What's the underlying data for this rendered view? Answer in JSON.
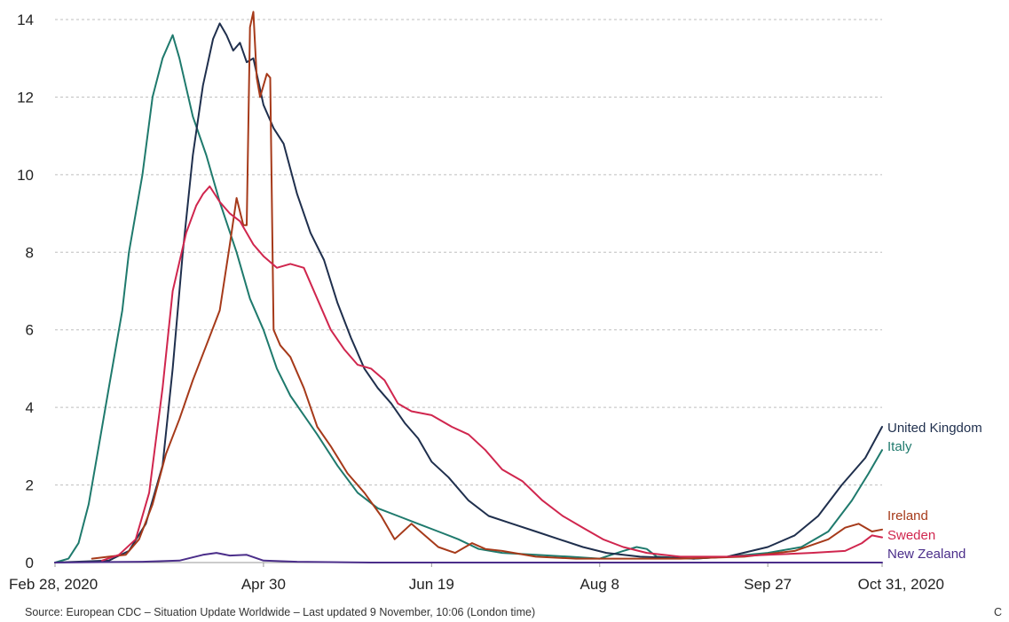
{
  "chart_data": {
    "type": "line",
    "title": "",
    "xlabel": "",
    "ylabel": "",
    "x_range": [
      "2020-02-28",
      "2020-10-31"
    ],
    "ylim": [
      0,
      14
    ],
    "y_ticks": [
      0,
      2,
      4,
      6,
      8,
      10,
      12,
      14
    ],
    "x_ticks": [
      {
        "date": "2020-02-28",
        "label": "Feb 28, 2020"
      },
      {
        "date": "2020-04-30",
        "label": "Apr 30"
      },
      {
        "date": "2020-06-19",
        "label": "Jun 19"
      },
      {
        "date": "2020-08-08",
        "label": "Aug 8"
      },
      {
        "date": "2020-09-27",
        "label": "Sep 27"
      },
      {
        "date": "2020-10-31",
        "label": "Oct 31, 2020"
      }
    ],
    "grid": "horizontal dashed",
    "legend": "line-end labels",
    "series": [
      {
        "name": "Italy",
        "color": "#1f7a6d",
        "points": [
          [
            "2020-02-28",
            0
          ],
          [
            "2020-03-03",
            0.1
          ],
          [
            "2020-03-06",
            0.5
          ],
          [
            "2020-03-09",
            1.5
          ],
          [
            "2020-03-12",
            3
          ],
          [
            "2020-03-15",
            4.5
          ],
          [
            "2020-03-19",
            6.5
          ],
          [
            "2020-03-21",
            8
          ],
          [
            "2020-03-25",
            10
          ],
          [
            "2020-03-28",
            12
          ],
          [
            "2020-03-31",
            13
          ],
          [
            "2020-04-03",
            13.6
          ],
          [
            "2020-04-05",
            13
          ],
          [
            "2020-04-09",
            11.5
          ],
          [
            "2020-04-13",
            10.5
          ],
          [
            "2020-04-17",
            9.3
          ],
          [
            "2020-04-22",
            8
          ],
          [
            "2020-04-26",
            6.8
          ],
          [
            "2020-04-30",
            6
          ],
          [
            "2020-05-04",
            5
          ],
          [
            "2020-05-08",
            4.3
          ],
          [
            "2020-05-12",
            3.8
          ],
          [
            "2020-05-16",
            3.3
          ],
          [
            "2020-05-22",
            2.5
          ],
          [
            "2020-05-28",
            1.8
          ],
          [
            "2020-06-03",
            1.4
          ],
          [
            "2020-06-09",
            1.2
          ],
          [
            "2020-06-15",
            1.0
          ],
          [
            "2020-06-21",
            0.8
          ],
          [
            "2020-06-27",
            0.6
          ],
          [
            "2020-07-03",
            0.35
          ],
          [
            "2020-07-10",
            0.25
          ],
          [
            "2020-07-20",
            0.2
          ],
          [
            "2020-07-30",
            0.15
          ],
          [
            "2020-08-08",
            0.1
          ],
          [
            "2020-08-15",
            0.3
          ],
          [
            "2020-08-19",
            0.4
          ],
          [
            "2020-08-22",
            0.35
          ],
          [
            "2020-08-25",
            0.15
          ],
          [
            "2020-09-05",
            0.1
          ],
          [
            "2020-09-15",
            0.15
          ],
          [
            "2020-09-27",
            0.25
          ],
          [
            "2020-10-07",
            0.4
          ],
          [
            "2020-10-15",
            0.8
          ],
          [
            "2020-10-22",
            1.6
          ],
          [
            "2020-10-27",
            2.3
          ],
          [
            "2020-10-31",
            2.9
          ]
        ]
      },
      {
        "name": "United Kingdom",
        "color": "#1f2f4d",
        "points": [
          [
            "2020-02-28",
            0
          ],
          [
            "2020-03-15",
            0.05
          ],
          [
            "2020-03-21",
            0.3
          ],
          [
            "2020-03-26",
            1.0
          ],
          [
            "2020-03-31",
            2.5
          ],
          [
            "2020-04-03",
            5
          ],
          [
            "2020-04-06",
            8
          ],
          [
            "2020-04-09",
            10.5
          ],
          [
            "2020-04-12",
            12.3
          ],
          [
            "2020-04-15",
            13.5
          ],
          [
            "2020-04-17",
            13.9
          ],
          [
            "2020-04-19",
            13.6
          ],
          [
            "2020-04-21",
            13.2
          ],
          [
            "2020-04-23",
            13.4
          ],
          [
            "2020-04-25",
            12.9
          ],
          [
            "2020-04-27",
            13
          ],
          [
            "2020-04-30",
            11.8
          ],
          [
            "2020-05-03",
            11.2
          ],
          [
            "2020-05-06",
            10.8
          ],
          [
            "2020-05-10",
            9.5
          ],
          [
            "2020-05-14",
            8.5
          ],
          [
            "2020-05-18",
            7.8
          ],
          [
            "2020-05-22",
            6.7
          ],
          [
            "2020-05-26",
            5.8
          ],
          [
            "2020-05-30",
            5.0
          ],
          [
            "2020-06-03",
            4.5
          ],
          [
            "2020-06-07",
            4.1
          ],
          [
            "2020-06-11",
            3.6
          ],
          [
            "2020-06-15",
            3.2
          ],
          [
            "2020-06-19",
            2.6
          ],
          [
            "2020-06-24",
            2.2
          ],
          [
            "2020-06-30",
            1.6
          ],
          [
            "2020-07-06",
            1.2
          ],
          [
            "2020-07-13",
            1.0
          ],
          [
            "2020-07-20",
            0.8
          ],
          [
            "2020-07-27",
            0.6
          ],
          [
            "2020-08-03",
            0.4
          ],
          [
            "2020-08-10",
            0.25
          ],
          [
            "2020-08-20",
            0.15
          ],
          [
            "2020-09-05",
            0.1
          ],
          [
            "2020-09-15",
            0.15
          ],
          [
            "2020-09-27",
            0.4
          ],
          [
            "2020-10-05",
            0.7
          ],
          [
            "2020-10-12",
            1.2
          ],
          [
            "2020-10-19",
            2.0
          ],
          [
            "2020-10-26",
            2.7
          ],
          [
            "2020-10-31",
            3.5
          ]
        ]
      },
      {
        "name": "Ireland",
        "color": "#a63a1a",
        "points": [
          [
            "2020-03-10",
            0.1
          ],
          [
            "2020-03-15",
            0.15
          ],
          [
            "2020-03-20",
            0.2
          ],
          [
            "2020-03-24",
            0.6
          ],
          [
            "2020-03-28",
            1.5
          ],
          [
            "2020-04-01",
            2.8
          ],
          [
            "2020-04-05",
            3.7
          ],
          [
            "2020-04-09",
            4.7
          ],
          [
            "2020-04-13",
            5.6
          ],
          [
            "2020-04-17",
            6.5
          ],
          [
            "2020-04-20",
            8.2
          ],
          [
            "2020-04-22",
            9.4
          ],
          [
            "2020-04-24",
            8.7
          ],
          [
            "2020-04-25",
            8.7
          ],
          [
            "2020-04-26",
            13.8
          ],
          [
            "2020-04-27",
            14.2
          ],
          [
            "2020-04-28",
            12.5
          ],
          [
            "2020-04-29",
            12.0
          ],
          [
            "2020-05-01",
            12.6
          ],
          [
            "2020-05-02",
            12.5
          ],
          [
            "2020-05-03",
            6.0
          ],
          [
            "2020-05-05",
            5.6
          ],
          [
            "2020-05-08",
            5.3
          ],
          [
            "2020-05-12",
            4.5
          ],
          [
            "2020-05-16",
            3.5
          ],
          [
            "2020-05-20",
            3.0
          ],
          [
            "2020-05-25",
            2.3
          ],
          [
            "2020-05-30",
            1.8
          ],
          [
            "2020-06-04",
            1.2
          ],
          [
            "2020-06-08",
            0.6
          ],
          [
            "2020-06-13",
            1.0
          ],
          [
            "2020-06-17",
            0.7
          ],
          [
            "2020-06-21",
            0.4
          ],
          [
            "2020-06-26",
            0.25
          ],
          [
            "2020-07-01",
            0.5
          ],
          [
            "2020-07-05",
            0.35
          ],
          [
            "2020-07-10",
            0.3
          ],
          [
            "2020-07-20",
            0.15
          ],
          [
            "2020-08-01",
            0.1
          ],
          [
            "2020-08-15",
            0.1
          ],
          [
            "2020-09-01",
            0.1
          ],
          [
            "2020-09-20",
            0.15
          ],
          [
            "2020-10-05",
            0.3
          ],
          [
            "2020-10-15",
            0.6
          ],
          [
            "2020-10-20",
            0.9
          ],
          [
            "2020-10-24",
            1.0
          ],
          [
            "2020-10-28",
            0.8
          ],
          [
            "2020-10-31",
            0.85
          ]
        ]
      },
      {
        "name": "Sweden",
        "color": "#d0264e",
        "points": [
          [
            "2020-03-13",
            0.05
          ],
          [
            "2020-03-18",
            0.2
          ],
          [
            "2020-03-23",
            0.6
          ],
          [
            "2020-03-27",
            1.8
          ],
          [
            "2020-03-31",
            4.5
          ],
          [
            "2020-04-03",
            7.0
          ],
          [
            "2020-04-07",
            8.5
          ],
          [
            "2020-04-10",
            9.2
          ],
          [
            "2020-04-12",
            9.5
          ],
          [
            "2020-04-14",
            9.7
          ],
          [
            "2020-04-17",
            9.3
          ],
          [
            "2020-04-20",
            9.0
          ],
          [
            "2020-04-23",
            8.8
          ],
          [
            "2020-04-27",
            8.2
          ],
          [
            "2020-04-30",
            7.9
          ],
          [
            "2020-05-04",
            7.6
          ],
          [
            "2020-05-08",
            7.7
          ],
          [
            "2020-05-12",
            7.6
          ],
          [
            "2020-05-16",
            6.8
          ],
          [
            "2020-05-20",
            6.0
          ],
          [
            "2020-05-24",
            5.5
          ],
          [
            "2020-05-28",
            5.1
          ],
          [
            "2020-06-01",
            5.0
          ],
          [
            "2020-06-05",
            4.7
          ],
          [
            "2020-06-09",
            4.1
          ],
          [
            "2020-06-13",
            3.9
          ],
          [
            "2020-06-19",
            3.8
          ],
          [
            "2020-06-25",
            3.5
          ],
          [
            "2020-06-30",
            3.3
          ],
          [
            "2020-07-05",
            2.9
          ],
          [
            "2020-07-10",
            2.4
          ],
          [
            "2020-07-16",
            2.1
          ],
          [
            "2020-07-22",
            1.6
          ],
          [
            "2020-07-28",
            1.2
          ],
          [
            "2020-08-03",
            0.9
          ],
          [
            "2020-08-09",
            0.6
          ],
          [
            "2020-08-15",
            0.4
          ],
          [
            "2020-08-22",
            0.25
          ],
          [
            "2020-09-01",
            0.15
          ],
          [
            "2020-09-15",
            0.15
          ],
          [
            "2020-09-27",
            0.2
          ],
          [
            "2020-10-10",
            0.25
          ],
          [
            "2020-10-20",
            0.3
          ],
          [
            "2020-10-25",
            0.5
          ],
          [
            "2020-10-28",
            0.7
          ],
          [
            "2020-10-31",
            0.65
          ]
        ]
      },
      {
        "name": "New Zealand",
        "color": "#4b2e8a",
        "points": [
          [
            "2020-02-28",
            0
          ],
          [
            "2020-03-25",
            0.02
          ],
          [
            "2020-04-05",
            0.05
          ],
          [
            "2020-04-12",
            0.2
          ],
          [
            "2020-04-16",
            0.25
          ],
          [
            "2020-04-20",
            0.18
          ],
          [
            "2020-04-25",
            0.2
          ],
          [
            "2020-04-30",
            0.05
          ],
          [
            "2020-05-10",
            0.02
          ],
          [
            "2020-06-01",
            0
          ],
          [
            "2020-07-01",
            0
          ],
          [
            "2020-08-01",
            0
          ],
          [
            "2020-09-01",
            0
          ],
          [
            "2020-10-01",
            0
          ],
          [
            "2020-10-31",
            0
          ]
        ]
      }
    ]
  },
  "source_note": "Source: European CDC – Situation Update Worldwide – Last updated 9 November, 10:06 (London time)",
  "corner_text": "C"
}
